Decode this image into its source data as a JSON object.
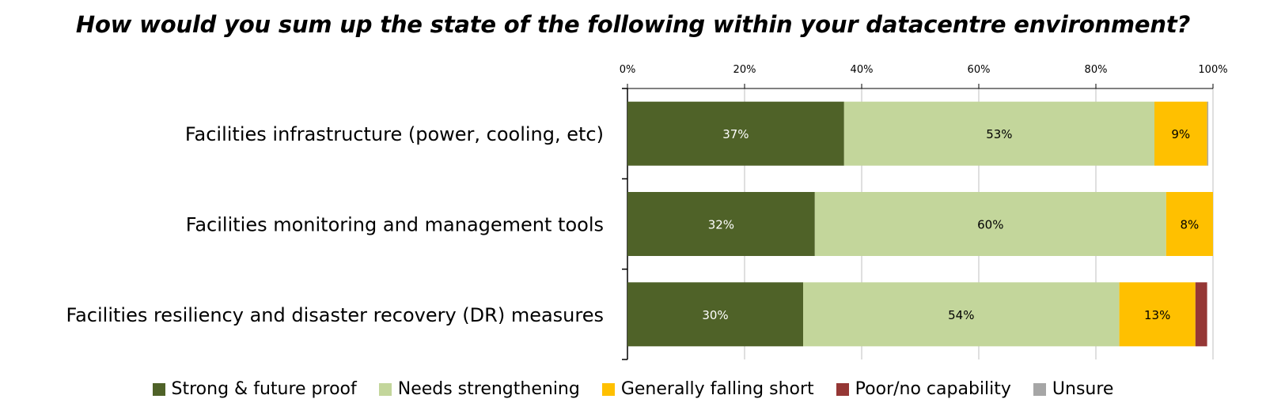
{
  "chart_data": {
    "type": "bar",
    "orientation": "horizontal",
    "stacked": true,
    "title": "How would you sum up the state of the following within your datacentre environment?",
    "categories": [
      "Facilities infrastructure (power, cooling, etc)",
      "Facilities monitoring and management tools",
      "Facilities resiliency and disaster recovery (DR) measures"
    ],
    "series": [
      {
        "name": "Strong & future proof",
        "color": "#4F6228",
        "values": [
          37,
          32,
          30
        ],
        "labels": [
          "37%",
          "32%",
          "30%"
        ],
        "label_color": "#ffffff"
      },
      {
        "name": "Needs strengthening",
        "color": "#C3D69B",
        "values": [
          53,
          60,
          54
        ],
        "labels": [
          "53%",
          "60%",
          "54%"
        ],
        "label_color": "#000000"
      },
      {
        "name": "Generally falling short",
        "color": "#FFC000",
        "values": [
          9,
          8,
          13
        ],
        "labels": [
          "9%",
          "8%",
          "13%"
        ],
        "label_color": "#000000"
      },
      {
        "name": "Poor/no capability",
        "color": "#953735",
        "values": [
          0,
          0,
          2
        ],
        "labels": [
          "",
          "",
          ""
        ],
        "label_color": "#000000"
      },
      {
        "name": "Unsure",
        "color": "#A6A6A6",
        "values": [
          0.2,
          0.5,
          0
        ],
        "labels": [
          "",
          "",
          ""
        ],
        "label_color": "#000000"
      }
    ],
    "xlim": [
      0,
      100
    ],
    "x_ticks": [
      "0%",
      "20%",
      "40%",
      "60%",
      "80%",
      "100%"
    ],
    "x_axis_position": "top",
    "grid": true,
    "legend_position": "bottom"
  }
}
